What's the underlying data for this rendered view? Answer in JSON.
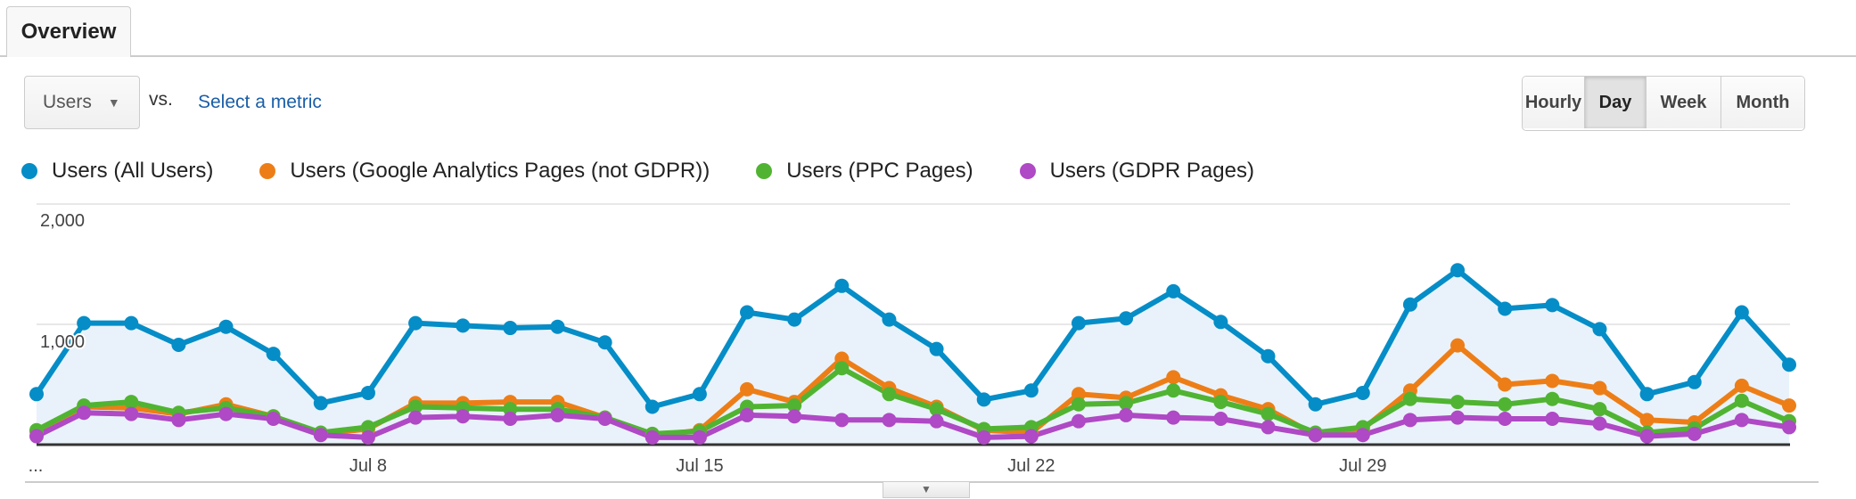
{
  "tabs": {
    "overview": "Overview"
  },
  "controls": {
    "metric_dropdown": "Users",
    "vs_label": "vs.",
    "select_metric_link": "Select a metric",
    "granularity": [
      {
        "label": "Hourly",
        "active": false
      },
      {
        "label": "Day",
        "active": true
      },
      {
        "label": "Week",
        "active": false
      },
      {
        "label": "Month",
        "active": false
      }
    ]
  },
  "chart_data": {
    "type": "line",
    "y_ticks": [
      "1,000",
      "2,000"
    ],
    "ylim": [
      0,
      2000
    ],
    "x_ticks": [
      "...",
      "Jul 8",
      "Jul 15",
      "Jul 22",
      "Jul 29"
    ],
    "grid": true,
    "legend_position": "top-left",
    "x": [
      "Jul 1",
      "Jul 2",
      "Jul 3",
      "Jul 4",
      "Jul 5",
      "Jul 6",
      "Jul 7",
      "Jul 8",
      "Jul 9",
      "Jul 10",
      "Jul 11",
      "Jul 12",
      "Jul 13",
      "Jul 14",
      "Jul 15",
      "Jul 16",
      "Jul 17",
      "Jul 18",
      "Jul 19",
      "Jul 20",
      "Jul 21",
      "Jul 22",
      "Jul 23",
      "Jul 24",
      "Jul 25",
      "Jul 26",
      "Jul 27",
      "Jul 28",
      "Jul 29",
      "Jul 30",
      "Jul 31",
      "Aug 1",
      "Aug 2",
      "Aug 3",
      "Aug 4",
      "Aug 5",
      "Aug 6",
      "Aug 7"
    ],
    "series": [
      {
        "name": "Users (All Users)",
        "color": "#058dc7",
        "filled": true,
        "values": [
          420,
          1010,
          1010,
          830,
          980,
          755,
          345,
          430,
          1010,
          990,
          970,
          980,
          850,
          315,
          420,
          1100,
          1040,
          1320,
          1040,
          795,
          375,
          450,
          1010,
          1050,
          1275,
          1020,
          735,
          335,
          430,
          1165,
          1450,
          1130,
          1160,
          960,
          420,
          520,
          1100,
          665
        ]
      },
      {
        "name": "Users (Google Analytics Pages (not GDPR))",
        "color": "#ed7e17",
        "values": [
          110,
          315,
          305,
          255,
          335,
          235,
          90,
          130,
          345,
          345,
          355,
          355,
          225,
          70,
          120,
          460,
          355,
          715,
          470,
          315,
          120,
          100,
          420,
          390,
          560,
          410,
          295,
          80,
          130,
          450,
          825,
          500,
          530,
          470,
          205,
          185,
          490,
          325
        ]
      },
      {
        "name": "Users (PPC Pages)",
        "color": "#50b432",
        "values": [
          120,
          325,
          355,
          265,
          305,
          235,
          100,
          145,
          315,
          305,
          295,
          295,
          225,
          90,
          110,
          315,
          325,
          635,
          420,
          295,
          130,
          145,
          335,
          345,
          450,
          355,
          255,
          100,
          145,
          380,
          355,
          335,
          380,
          295,
          100,
          135,
          365,
          195
        ]
      },
      {
        "name": "Users (GDPR Pages)",
        "color": "#af49c5",
        "values": [
          70,
          265,
          255,
          205,
          255,
          215,
          80,
          60,
          225,
          235,
          215,
          245,
          215,
          60,
          60,
          245,
          235,
          205,
          205,
          195,
          60,
          70,
          195,
          245,
          225,
          215,
          145,
          80,
          80,
          205,
          225,
          215,
          215,
          175,
          70,
          90,
          205,
          145
        ]
      }
    ]
  }
}
